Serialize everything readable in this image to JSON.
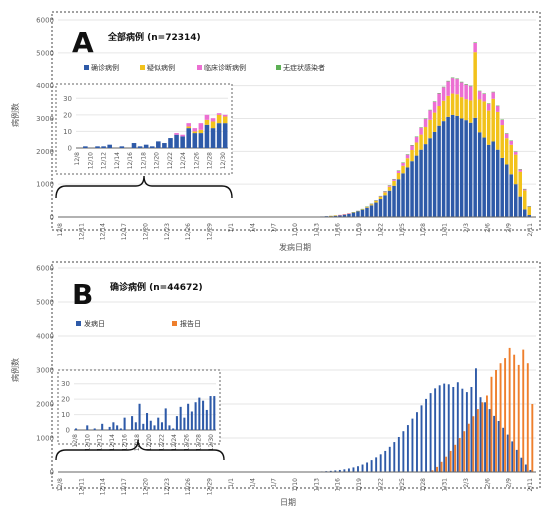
{
  "chart_data": [
    {
      "panel": "A",
      "type": "bar",
      "stacked": true,
      "title": "全部病例 (n=72314)",
      "xlabel": "发病日期",
      "ylabel": "病例数",
      "ylim": [
        0,
        6000
      ],
      "yticks": [
        0,
        1000,
        2000,
        3000,
        4000,
        5000,
        6000
      ],
      "x_tick_labels": [
        "12/8",
        "12/11",
        "12/14",
        "12/17",
        "12/20",
        "12/23",
        "12/26",
        "12/29",
        "1/1",
        "1/4",
        "1/7",
        "1/10",
        "1/13",
        "1/16",
        "1/19",
        "1/22",
        "1/25",
        "1/28",
        "1/31",
        "2/3",
        "2/6",
        "2/9",
        "2/11"
      ],
      "legend_position": "top",
      "series": [
        {
          "name": "确诊病例",
          "color": "#2e5aa8",
          "values": [
            1,
            0,
            0,
            1,
            1,
            2,
            0,
            1,
            0,
            4,
            1,
            2,
            1,
            2,
            3,
            5,
            7,
            9,
            12,
            14,
            17,
            25,
            34,
            47,
            60,
            79,
            104,
            135,
            170,
            220,
            282,
            355,
            440,
            547,
            660,
            800,
            950,
            1150,
            1330,
            1510,
            1700,
            1870,
            2050,
            2220,
            2400,
            2590,
            2780,
            2920,
            3050,
            3110,
            3080,
            3000,
            2950,
            2870,
            3020,
            2580,
            2420,
            2200,
            2300,
            2050,
            1800,
            1600,
            1300,
            1000,
            620,
            230,
            60
          ]
        },
        {
          "name": "疑似病例",
          "color": "#f2c21b",
          "values": [
            0,
            0,
            0,
            0,
            0,
            0,
            0,
            0,
            0,
            0,
            0,
            0,
            0,
            0,
            0,
            0,
            0,
            0,
            0,
            0,
            0,
            0,
            1,
            2,
            3,
            4,
            6,
            9,
            12,
            18,
            25,
            34,
            48,
            65,
            90,
            120,
            150,
            190,
            230,
            280,
            340,
            400,
            460,
            520,
            560,
            590,
            600,
            620,
            640,
            650,
            660,
            650,
            640,
            680,
            2000,
            1000,
            1100,
            1040,
            1300,
            1150,
            1000,
            800,
            900,
            900,
            760,
            580,
            250
          ]
        },
        {
          "name": "临床诊断病例",
          "color": "#ec6fd2",
          "values": [
            0,
            0,
            0,
            0,
            0,
            0,
            0,
            0,
            0,
            0,
            0,
            0,
            0,
            0,
            0,
            0,
            0,
            0,
            0,
            0,
            0,
            0,
            0,
            0,
            1,
            2,
            3,
            4,
            5,
            7,
            10,
            14,
            18,
            25,
            30,
            40,
            50,
            70,
            90,
            110,
            140,
            170,
            210,
            250,
            290,
            330,
            380,
            410,
            440,
            470,
            460,
            450,
            440,
            430,
            280,
            250,
            230,
            210,
            200,
            180,
            160,
            140,
            120,
            90,
            70,
            40,
            20
          ]
        },
        {
          "name": "无症状感染者",
          "color": "#5db055",
          "values": [
            0,
            0,
            0,
            0,
            0,
            0,
            0,
            0,
            0,
            0,
            0,
            0,
            0,
            0,
            0,
            0,
            0,
            0,
            0,
            0,
            0,
            0,
            0,
            0,
            0,
            0,
            0,
            1,
            1,
            2,
            2,
            3,
            4,
            5,
            6,
            6,
            8,
            9,
            10,
            11,
            12,
            12,
            13,
            14,
            15,
            15,
            16,
            17,
            17,
            18,
            18,
            19,
            19,
            19,
            18,
            17,
            16,
            15,
            14,
            13,
            12,
            11,
            10,
            9,
            8,
            6,
            4
          ]
        }
      ],
      "inset": {
        "yticks": [
          0,
          10,
          20,
          30
        ],
        "ylim": [
          0,
          35
        ],
        "x_tick_labels": [
          "12/8",
          "12/10",
          "12/12",
          "12/14",
          "12/16",
          "12/18",
          "12/20",
          "12/22",
          "12/24",
          "12/26",
          "12/28",
          "12/30"
        ],
        "series_values": [
          [
            0,
            1,
            0,
            1,
            1,
            2,
            0,
            1,
            0,
            3,
            1,
            2,
            1,
            4,
            3,
            6,
            8,
            7,
            12,
            9,
            9,
            14,
            12,
            15,
            15
          ],
          [
            0,
            0,
            0,
            0,
            0,
            0,
            0,
            0,
            0,
            0,
            0,
            0,
            0,
            0,
            0,
            0,
            0,
            0,
            1,
            1,
            2,
            3,
            4,
            5,
            4
          ],
          [
            0,
            0,
            0,
            0,
            0,
            0,
            0,
            0,
            0,
            0,
            0,
            0,
            0,
            0,
            0,
            0,
            1,
            1,
            2,
            2,
            4,
            3,
            2,
            1,
            1
          ],
          [
            0,
            0,
            0,
            0,
            0,
            0,
            0,
            0,
            0,
            0,
            0,
            0,
            0,
            0,
            0,
            0,
            0,
            0,
            0,
            0,
            0,
            0,
            0,
            0,
            0
          ]
        ]
      }
    },
    {
      "panel": "B",
      "type": "bar",
      "stacked": false,
      "title": "确诊病例 (n=44672)",
      "xlabel": "日期",
      "ylabel": "病例数",
      "ylim": [
        0,
        6000
      ],
      "yticks": [
        0,
        1000,
        2000,
        3000,
        4000,
        5000,
        6000
      ],
      "x_tick_labels": [
        "12/8",
        "12/11",
        "12/14",
        "12/17",
        "12/20",
        "12/23",
        "12/26",
        "12/29",
        "1/1",
        "1/4",
        "1/7",
        "1/10",
        "1/13",
        "1/16",
        "1/19",
        "1/22",
        "1/25",
        "1/28",
        "1/31",
        "2/3",
        "2/6",
        "2/9",
        "2/11"
      ],
      "legend_position": "top-left",
      "series": [
        {
          "name": "发病日",
          "color": "#2e5aa8",
          "values": [
            1,
            0,
            0,
            1,
            1,
            2,
            0,
            1,
            0,
            4,
            1,
            2,
            1,
            2,
            3,
            5,
            7,
            9,
            12,
            14,
            17,
            25,
            34,
            47,
            60,
            79,
            104,
            135,
            170,
            220,
            280,
            350,
            430,
            520,
            620,
            740,
            880,
            1030,
            1200,
            1380,
            1570,
            1760,
            1960,
            2150,
            2320,
            2460,
            2550,
            2600,
            2580,
            2500,
            2640,
            2450,
            2350,
            2500,
            3050,
            2200,
            2050,
            1850,
            1650,
            1500,
            1300,
            1100,
            900,
            650,
            420,
            220,
            60
          ]
        },
        {
          "name": "报告日",
          "color": "#ee7f2d",
          "values": [
            0,
            0,
            0,
            0,
            0,
            0,
            0,
            0,
            0,
            0,
            0,
            0,
            0,
            0,
            0,
            0,
            0,
            0,
            0,
            0,
            0,
            0,
            0,
            0,
            0,
            0,
            0,
            0,
            0,
            0,
            0,
            0,
            0,
            0,
            0,
            0,
            0,
            0,
            0,
            0,
            0,
            0,
            0,
            0,
            50,
            150,
            300,
            450,
            620,
            800,
            1000,
            1200,
            1420,
            1640,
            1850,
            2050,
            2250,
            2800,
            3000,
            3200,
            3350,
            3650,
            3450,
            3150,
            3600,
            3200,
            2000
          ]
        }
      ],
      "inset": {
        "yticks": [
          0,
          10,
          20,
          30
        ],
        "ylim": [
          0,
          35
        ],
        "x_tick_labels": [
          "12/8",
          "12/10",
          "12/12",
          "12/14",
          "12/16",
          "12/18",
          "12/20",
          "12/22",
          "12/24",
          "12/26",
          "12/28",
          "12/30"
        ],
        "values": [
          1,
          0,
          0,
          3,
          0,
          1,
          0,
          4,
          0,
          2,
          5,
          3,
          1,
          8,
          0,
          9,
          5,
          17,
          4,
          11,
          6,
          3,
          8,
          5,
          14,
          3,
          1,
          9,
          15,
          8,
          17,
          12,
          18,
          21,
          19,
          13,
          22,
          22
        ]
      }
    }
  ]
}
